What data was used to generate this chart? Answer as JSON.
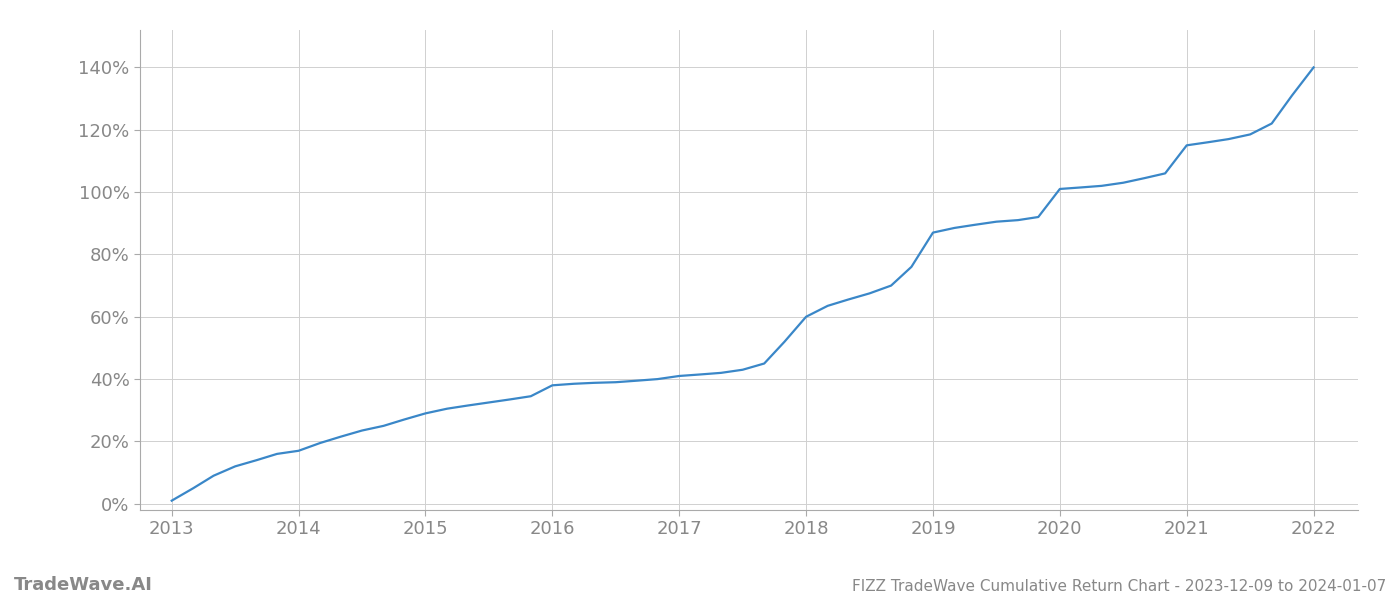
{
  "title": "FIZZ TradeWave Cumulative Return Chart - 2023-12-09 to 2024-01-07",
  "watermark": "TradeWave.AI",
  "line_color": "#3a87c8",
  "background_color": "#ffffff",
  "grid_color": "#d0d0d0",
  "x_data": [
    2013.0,
    2013.17,
    2013.33,
    2013.5,
    2013.67,
    2013.83,
    2014.0,
    2014.17,
    2014.33,
    2014.5,
    2014.67,
    2014.83,
    2015.0,
    2015.17,
    2015.33,
    2015.5,
    2015.67,
    2015.83,
    2016.0,
    2016.17,
    2016.33,
    2016.5,
    2016.67,
    2016.83,
    2017.0,
    2017.17,
    2017.33,
    2017.5,
    2017.67,
    2017.83,
    2018.0,
    2018.17,
    2018.33,
    2018.5,
    2018.67,
    2018.83,
    2019.0,
    2019.17,
    2019.33,
    2019.5,
    2019.67,
    2019.83,
    2020.0,
    2020.17,
    2020.33,
    2020.5,
    2020.67,
    2020.83,
    2021.0,
    2021.17,
    2021.33,
    2021.5,
    2021.67,
    2021.83,
    2022.0
  ],
  "y_data": [
    0.01,
    0.05,
    0.09,
    0.12,
    0.14,
    0.16,
    0.17,
    0.195,
    0.215,
    0.235,
    0.25,
    0.27,
    0.29,
    0.305,
    0.315,
    0.325,
    0.335,
    0.345,
    0.38,
    0.385,
    0.388,
    0.39,
    0.395,
    0.4,
    0.41,
    0.415,
    0.42,
    0.43,
    0.45,
    0.52,
    0.6,
    0.635,
    0.655,
    0.675,
    0.7,
    0.76,
    0.87,
    0.885,
    0.895,
    0.905,
    0.91,
    0.92,
    1.01,
    1.015,
    1.02,
    1.03,
    1.045,
    1.06,
    1.15,
    1.16,
    1.17,
    1.185,
    1.22,
    1.31,
    1.4
  ],
  "ylim": [
    -0.02,
    1.52
  ],
  "xlim": [
    2012.75,
    2022.35
  ],
  "yticks": [
    0.0,
    0.2,
    0.4,
    0.6,
    0.8,
    1.0,
    1.2,
    1.4
  ],
  "ytick_labels": [
    "0%",
    "20%",
    "40%",
    "60%",
    "80%",
    "100%",
    "120%",
    "140%"
  ],
  "xticks": [
    2013,
    2014,
    2015,
    2016,
    2017,
    2018,
    2019,
    2020,
    2021,
    2022
  ],
  "tick_color": "#888888",
  "spine_color": "#aaaaaa",
  "tick_fontsize": 13,
  "title_fontsize": 11,
  "watermark_fontsize": 13,
  "line_width": 1.6
}
